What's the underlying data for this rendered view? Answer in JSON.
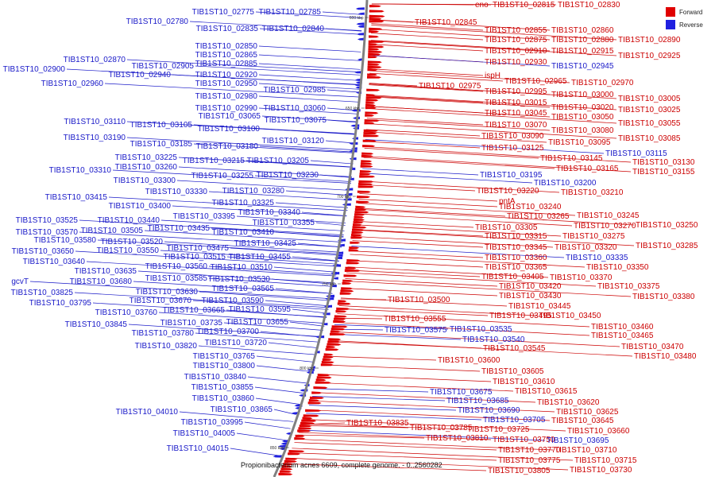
{
  "caption": "Propionibacterium acnes 6609, complete genome. - 0..2560282",
  "legend": [
    {
      "label": "Forward",
      "color": "#e00000"
    },
    {
      "label": "Reverse",
      "color": "#2020e0"
    }
  ],
  "ticks": [
    "600 kbp",
    "650 kbp",
    "700 kbp",
    "750 kbp",
    "800 kbp",
    "850 kbp"
  ],
  "forward_labels": [
    "eno",
    "TIB1ST10_02815",
    "TIB1ST10_02830",
    "TIB1ST10_02845",
    "TIB1ST10_02855",
    "TIB1ST10_02860",
    "TIB1ST10_02875",
    "TIB1ST10_02880",
    "TIB1ST10_02890",
    "TIB1ST10_02910",
    "TIB1ST10_02915",
    "TIB1ST10_02925",
    "TIB1ST10_02930",
    "ispH",
    "TIB1ST10_02965",
    "TIB1ST10_02975",
    "TIB1ST10_02970",
    "TIB1ST10_02995",
    "TIB1ST10_03000",
    "TIB1ST10_03005",
    "TIB1ST10_03015",
    "TIB1ST10_03020",
    "TIB1ST10_03025",
    "TIB1ST10_03045",
    "TIB1ST10_03050",
    "TIB1ST10_03055",
    "TIB1ST10_03070",
    "TIB1ST10_03080",
    "TIB1ST10_03090",
    "TIB1ST10_03085",
    "TIB1ST10_03095",
    "TIB1ST10_03125",
    "TIB1ST10_03145",
    "TIB1ST10_03130",
    "TIB1ST10_03165",
    "TIB1ST10_03155",
    "TIB1ST10_03220",
    "TIB1ST10_03210",
    "pntA",
    "TIB1ST10_03240",
    "TIB1ST10_03265",
    "TIB1ST10_03245",
    "TIB1ST10_03305",
    "TIB1ST10_03270",
    "TIB1ST10_03250",
    "TIB1ST10_03315",
    "TIB1ST10_03275",
    "TIB1ST10_03345",
    "TIB1ST10_03320",
    "TIB1ST10_03285",
    "TIB1ST10_03360",
    "TIB1ST10_03365",
    "TIB1ST10_03350",
    "TIB1ST10_03405",
    "TIB1ST10_03370",
    "TIB1ST10_03420",
    "TIB1ST10_03375",
    "TIB1ST10_03430",
    "TIB1ST10_03380",
    "TIB1ST10_03500",
    "TIB1ST10_03445",
    "TIB1ST10_03495",
    "TIB1ST10_03450",
    "TIB1ST10_03555",
    "TIB1ST10_03460",
    "TIB1ST10_03465",
    "TIB1ST10_03545",
    "TIB1ST10_03470",
    "TIB1ST10_03480",
    "TIB1ST10_03600",
    "TIB1ST10_03605",
    "TIB1ST10_03610",
    "TIB1ST10_03615",
    "TIB1ST10_03620",
    "TIB1ST10_03625",
    "TIB1ST10_03645",
    "TIB1ST10_03660",
    "TIB1ST10_03725",
    "TIB1ST10_03835",
    "TIB1ST10_03785",
    "TIB1ST10_03810",
    "TIB1ST10_03750",
    "TIB1ST10_03710",
    "TIB1ST10_03770",
    "TIB1ST10_03715",
    "TIB1ST10_03775",
    "TIB1ST10_03730",
    "TIB1ST10_03805"
  ],
  "right_reverse_labels": [
    "TIB1ST10_02945",
    "TIB1ST10_03115",
    "TIB1ST10_03195",
    "TIB1ST10_03200",
    "TIB1ST10_03335",
    "TIB1ST10_03575",
    "TIB1ST10_03535",
    "TIB1ST10_03540",
    "TIB1ST10_03675",
    "TIB1ST10_03685",
    "TIB1ST10_03690",
    "TIB1ST10_03705",
    "TIB1ST10_03695"
  ],
  "reverse_labels": [
    "TIB1ST10_02775",
    "TIB1ST10_02785",
    "TIB1ST10_02780",
    "TIB1ST10_02835",
    "TIB1ST10_02840",
    "TIB1ST10_02850",
    "TIB1ST10_02865",
    "TIB1ST10_02870",
    "TIB1ST10_02885",
    "TIB1ST10_02905",
    "TIB1ST10_02900",
    "TIB1ST10_02920",
    "TIB1ST10_02940",
    "TIB1ST10_02950",
    "TIB1ST10_02960",
    "TIB1ST10_02980",
    "TIB1ST10_02985",
    "TIB1ST10_02990",
    "TIB1ST10_03060",
    "TIB1ST10_03065",
    "TIB1ST10_03075",
    "TIB1ST10_03110",
    "TIB1ST10_03105",
    "TIB1ST10_03100",
    "TIB1ST10_03190",
    "TIB1ST10_03120",
    "TIB1ST10_03185",
    "TIB1ST10_03180",
    "TIB1ST10_03225",
    "TIB1ST10_03215",
    "TIB1ST10_03205",
    "TIB1ST10_03310",
    "TIB1ST10_03260",
    "TIB1ST10_03255",
    "TIB1ST10_03230",
    "TIB1ST10_03300",
    "TIB1ST10_03330",
    "TIB1ST10_03280",
    "TIB1ST10_03415",
    "TIB1ST10_03325",
    "TIB1ST10_03400",
    "TIB1ST10_03340",
    "TIB1ST10_03525",
    "TIB1ST10_03440",
    "TIB1ST10_03395",
    "TIB1ST10_03355",
    "TIB1ST10_03570",
    "TIB1ST10_03505",
    "TIB1ST10_03435",
    "TIB1ST10_03410",
    "TIB1ST10_03580",
    "TIB1ST10_03520",
    "TIB1ST10_03425",
    "TIB1ST10_03650",
    "TIB1ST10_03550",
    "TIB1ST10_03475",
    "TIB1ST10_03640",
    "TIB1ST10_03515",
    "TIB1ST10_03455",
    "TIB1ST10_03560",
    "TIB1ST10_03510",
    "TIB1ST10_03635",
    "TIB1ST10_03680",
    "TIB1ST10_03585",
    "TIB1ST10_03530",
    "gcvT",
    "TIB1ST10_03825",
    "TIB1ST10_03630",
    "TIB1ST10_03565",
    "TIB1ST10_03795",
    "TIB1ST10_03670",
    "TIB1ST10_03590",
    "TIB1ST10_03760",
    "TIB1ST10_03665",
    "TIB1ST10_03595",
    "TIB1ST10_03845",
    "TIB1ST10_03735",
    "TIB1ST10_03655",
    "TIB1ST10_03780",
    "TIB1ST10_03700",
    "TIB1ST10_03820",
    "TIB1ST10_03720",
    "TIB1ST10_03765",
    "TIB1ST10_03800",
    "TIB1ST10_03840",
    "TIB1ST10_03855",
    "TIB1ST10_03860",
    "TIB1ST10_03865",
    "TIB1ST10_04010",
    "TIB1ST10_03995",
    "TIB1ST10_04005",
    "TIB1ST10_04015"
  ]
}
